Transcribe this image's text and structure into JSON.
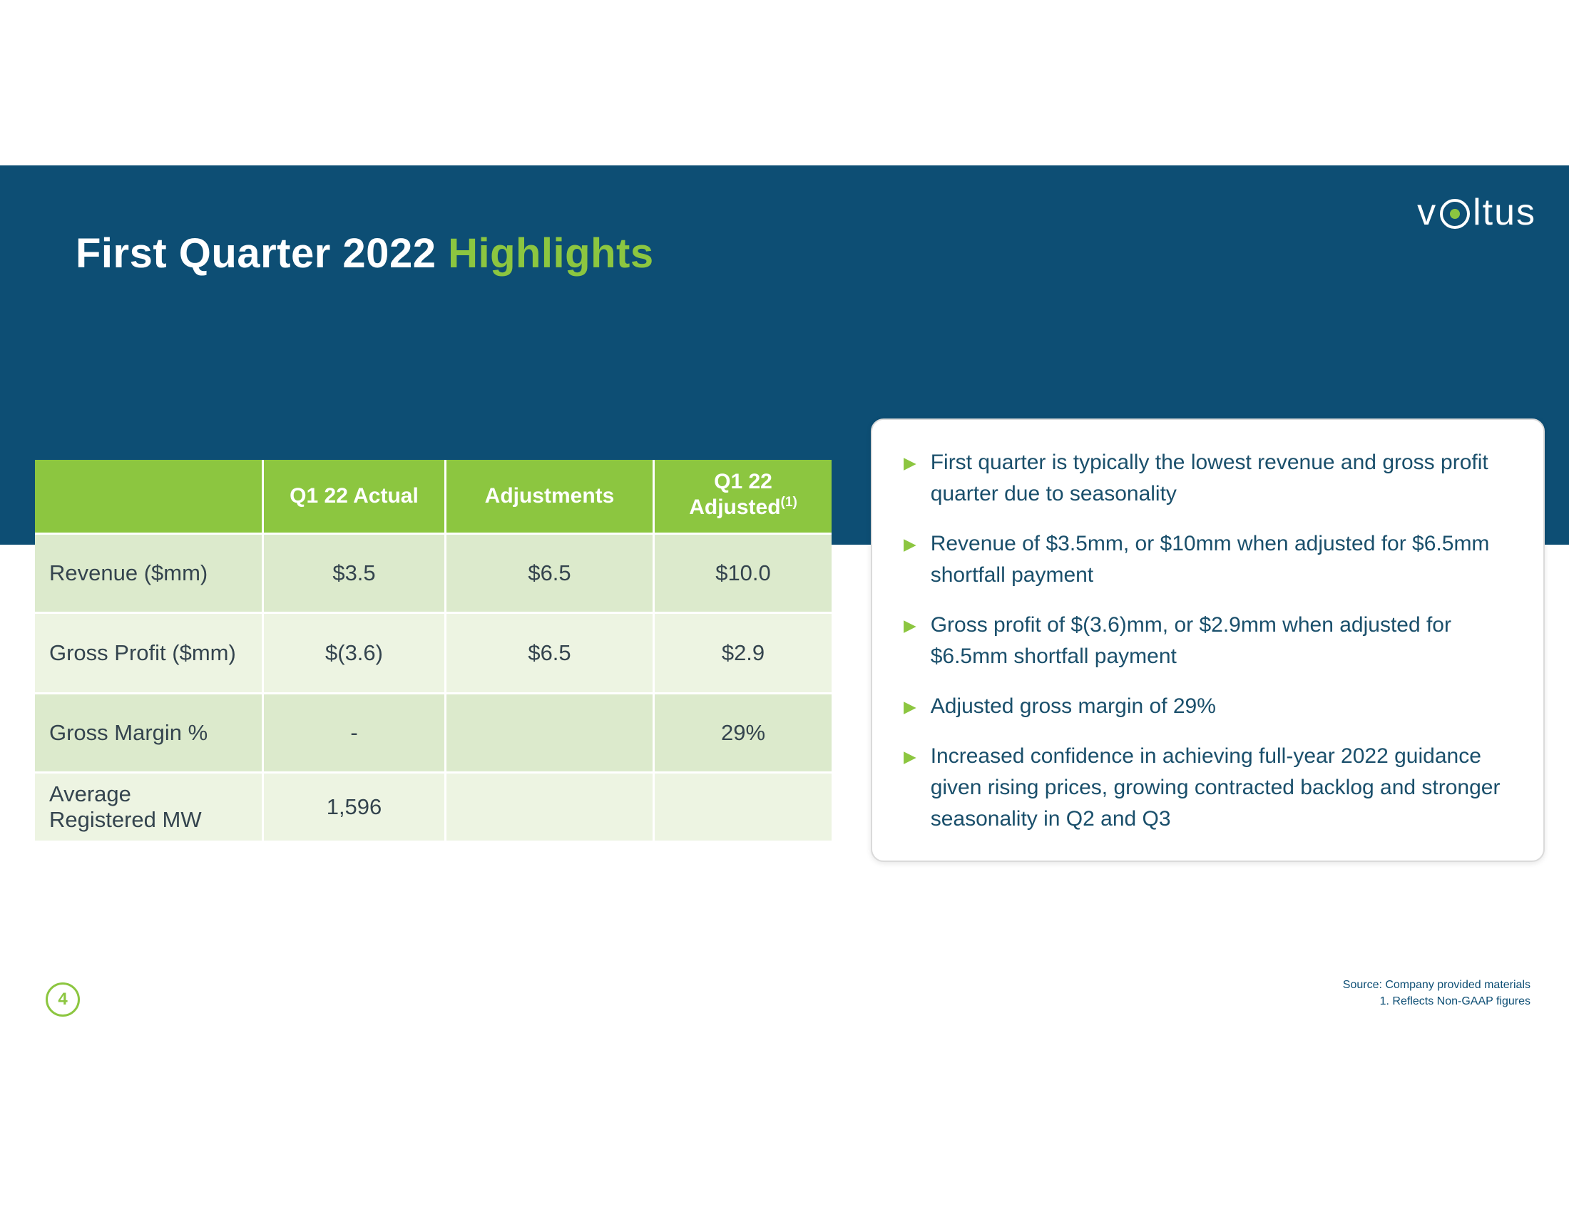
{
  "slide": {
    "title": {
      "primary": "First Quarter 2022 ",
      "accent": "Highlights"
    },
    "page_number": "4",
    "source_line": "Source: Company provided materials",
    "footnote_line": "1. Reflects Non-GAAP figures"
  },
  "logo": {
    "prefix": "v",
    "suffix": "ltus",
    "brand": "Voltus"
  },
  "icons": {
    "bullet_marker": "▶"
  },
  "colors": {
    "navy_band": "#0d4e74",
    "accent_green": "#8cc640",
    "table_row_a": "#dceacc",
    "table_row_b": "#edf4e2",
    "bullet_text": "#1a4f6b"
  },
  "table": {
    "headers": {
      "col0": "",
      "col1": "Q1 22 Actual",
      "col2": "Adjustments",
      "col3_line1": "Q1 22",
      "col3_line2": "Adjusted",
      "col3_sup": "(1)"
    },
    "rows": [
      {
        "label": "Revenue ($mm)",
        "actual": "$3.5",
        "adjustments": "$6.5",
        "adjusted": "$10.0"
      },
      {
        "label": "Gross Profit ($mm)",
        "actual": "$(3.6)",
        "adjustments": "$6.5",
        "adjusted": "$2.9"
      },
      {
        "label": "Gross Margin %",
        "actual": "-",
        "adjustments": "",
        "adjusted": "29%"
      },
      {
        "label": "Average\nRegistered MW",
        "actual": "1,596",
        "adjustments": "",
        "adjusted": ""
      }
    ]
  },
  "highlights": [
    "First quarter is typically the lowest revenue and gross profit quarter due to seasonality",
    "Revenue of $3.5mm, or $10mm when adjusted for $6.5mm shortfall payment",
    "Gross profit of $(3.6)mm, or $2.9mm when adjusted for $6.5mm shortfall payment",
    "Adjusted gross margin of 29%",
    "Increased confidence in achieving full-year 2022 guidance given rising prices, growing contracted backlog and stronger seasonality in Q2 and Q3"
  ]
}
